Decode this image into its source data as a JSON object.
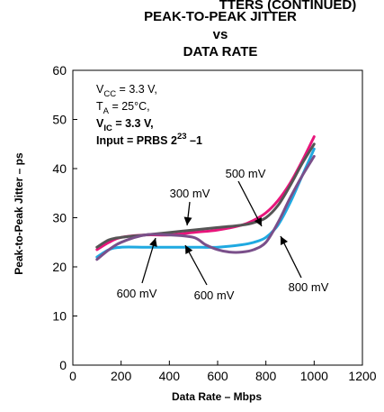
{
  "chart_data": {
    "type": "line",
    "title": "PEAK-TO-PEAK JITTER",
    "title_vs": "vs",
    "title_line3": "DATA RATE",
    "header_fragment": "TTERS (CONTINUED)",
    "xlabel": "Data Rate – Mbps",
    "ylabel": "Peak-to-Peak Jitter – ps",
    "xlim": [
      0,
      1200
    ],
    "ylim": [
      0,
      60
    ],
    "xticks": [
      0,
      200,
      400,
      600,
      800,
      1000,
      1200
    ],
    "yticks": [
      0,
      10,
      20,
      30,
      40,
      50,
      60
    ],
    "grid": false,
    "conditions": [
      {
        "main": "V",
        "sub": "CC",
        "rest": " = 3.3 V,",
        "bold": false
      },
      {
        "main": "T",
        "sub": "A",
        "rest": " = 25°C,",
        "bold": false
      },
      {
        "main": "V",
        "sub": "IC",
        "rest": " = 3.3 V,",
        "bold": true
      },
      {
        "main": "Input = PRBS 2",
        "sup": "23",
        "rest": " –1",
        "bold": true
      }
    ],
    "series": [
      {
        "name": "300 mV",
        "color": "#e8157b",
        "x": [
          100,
          150,
          200,
          300,
          400,
          500,
          600,
          700,
          750,
          800,
          850,
          900,
          950,
          1000
        ],
        "y": [
          23.5,
          25,
          26,
          26.5,
          26.5,
          27,
          27.5,
          28.5,
          29.5,
          31,
          33.5,
          37,
          41.5,
          46.5
        ]
      },
      {
        "name": "500 mV",
        "color": "#555555",
        "x": [
          100,
          150,
          200,
          300,
          400,
          500,
          600,
          700,
          750,
          800,
          850,
          900,
          950,
          1000
        ],
        "y": [
          24,
          25.5,
          26,
          26.5,
          27,
          27.5,
          28,
          28.5,
          29,
          30,
          32.5,
          36.5,
          41,
          45
        ]
      },
      {
        "name": "600 mV",
        "color": "#1fa9e1",
        "x": [
          100,
          150,
          200,
          300,
          400,
          500,
          600,
          700,
          750,
          800,
          850,
          900,
          950,
          1000
        ],
        "y": [
          22,
          23.5,
          24,
          24,
          24,
          24,
          24,
          24.5,
          25,
          26,
          28.5,
          33,
          38.5,
          44
        ]
      },
      {
        "name": "800 mV",
        "color": "#7a4f8a",
        "x": [
          100,
          150,
          200,
          300,
          400,
          500,
          550,
          600,
          650,
          700,
          750,
          800,
          850,
          900,
          950,
          1000
        ],
        "y": [
          21.5,
          23.5,
          25,
          26.5,
          26.5,
          26,
          24.5,
          23.5,
          23,
          23,
          23.5,
          25,
          29,
          34,
          38.5,
          42.5
        ]
      }
    ],
    "annotations": [
      "300 mV",
      "500 mV",
      "600 mV",
      "600 mV",
      "800 mV"
    ]
  }
}
